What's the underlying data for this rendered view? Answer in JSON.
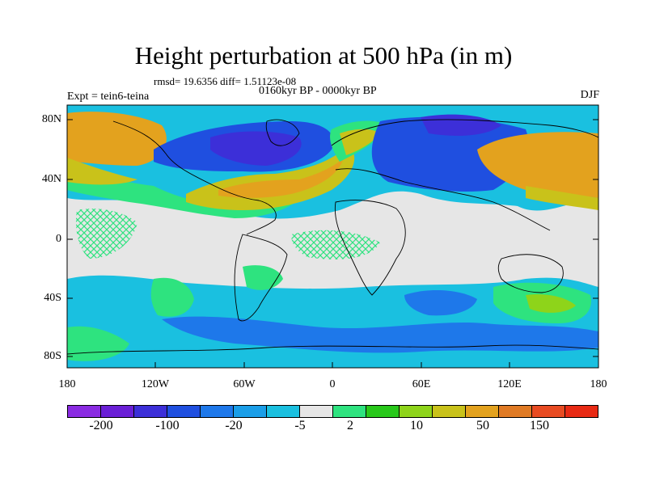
{
  "title": "Height perturbation at 500 hPa (in m)",
  "stats": "rmsd= 19.6356 diff= 1.51123e-08",
  "period": "0160kyr BP - 0000kyr BP",
  "experiment": "Expt = tein6-teina",
  "season": "DJF",
  "lat_labels": [
    "80N",
    "40N",
    "0",
    "40S",
    "80S"
  ],
  "lon_labels": [
    "180",
    "120W",
    "60W",
    "0",
    "60E",
    "120E",
    "180"
  ],
  "colorbar": {
    "labels": [
      "-200",
      "-100",
      "-20",
      "-5",
      "2",
      "10",
      "50",
      "150"
    ],
    "colors": [
      "#8a2be2",
      "#6a1fd6",
      "#3c2fd8",
      "#1f4fe0",
      "#1e78ea",
      "#1a9ee8",
      "#1ac0e0",
      "#e6e6e6",
      "#2ee37f",
      "#28c81a",
      "#8ed41a",
      "#c9c21a",
      "#e3a21e",
      "#e07a24",
      "#e84b22",
      "#e82a14"
    ]
  }
}
